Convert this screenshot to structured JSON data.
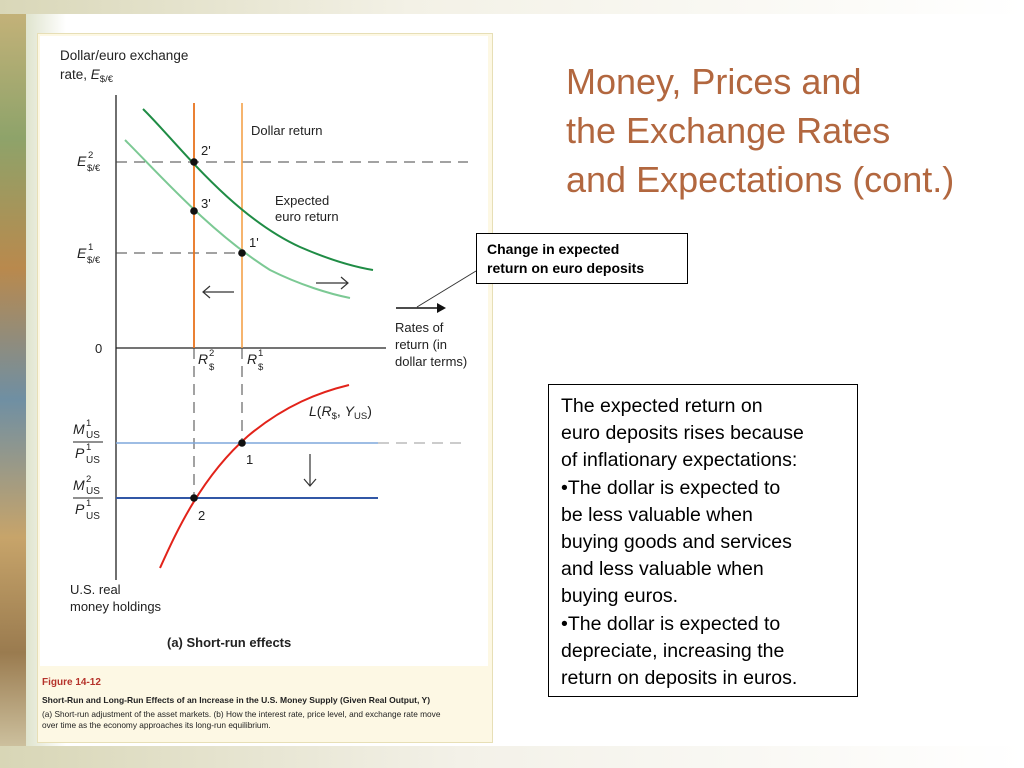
{
  "slide": {
    "title_lines": [
      "Money, Prices and",
      "the Exchange Rates",
      "and Expectations (cont.)"
    ],
    "title_color": "#b2673f"
  },
  "callout": {
    "lines": [
      "Change in expected",
      "return on euro deposits"
    ]
  },
  "explanation": {
    "lines": [
      "The expected return on",
      "euro deposits rises because",
      "of inflationary expectations:",
      "•The dollar is expected to",
      "be less valuable when",
      "buying goods and services",
      "and less valuable when",
      "buying euros.",
      "•The dollar is expected to",
      "depreciate, increasing the",
      "return on deposits in euros."
    ]
  },
  "figure": {
    "caption_number": "Figure 14-12",
    "caption_title": "Short-Run and Long-Run Effects of an Increase in the U.S. Money Supply (Given Real Output, Y)",
    "caption_desc_lines": [
      "(a) Short-run adjustment of the asset markets. (b) How the interest rate, price level, and exchange rate move",
      "over time as the economy approaches its long-run equilibrium."
    ],
    "panel_label": "(a) Short-run effects",
    "y_axis_label_lines": [
      "Dollar/euro exchange",
      "rate, E$/€"
    ],
    "e2_label": "E$/€ 2",
    "e1_label": "E$/€ 1",
    "zero_label": "0",
    "x_axis_label_lines": [
      "Rates of",
      "return (in",
      "dollar terms)"
    ],
    "r2_label": "R$ 2",
    "r1_label": "R$ 1",
    "dollar_return_label": "Dollar return",
    "expected_return_label_lines": [
      "Expected",
      "euro return"
    ],
    "point_labels": {
      "p2prime": "2'",
      "p3prime": "3'",
      "p1prime": "1'",
      "p1": "1",
      "p2": "2"
    },
    "money_demand_label": "L(R$, YUS)",
    "m1_label": "M1US / P1US",
    "m2_label": "M2US / P1US",
    "holdings_label_lines": [
      "U.S. real",
      "money holdings"
    ],
    "colors": {
      "dollar_return_line": "#f39a3a",
      "new_dollar_return_line": "#e8731e",
      "expected_return_new": "#1f8c45",
      "expected_return_old": "#7cc994",
      "money_demand": "#e2231a",
      "supply_line_1": "#7fa7dc",
      "supply_line_2": "#3157a6"
    }
  }
}
